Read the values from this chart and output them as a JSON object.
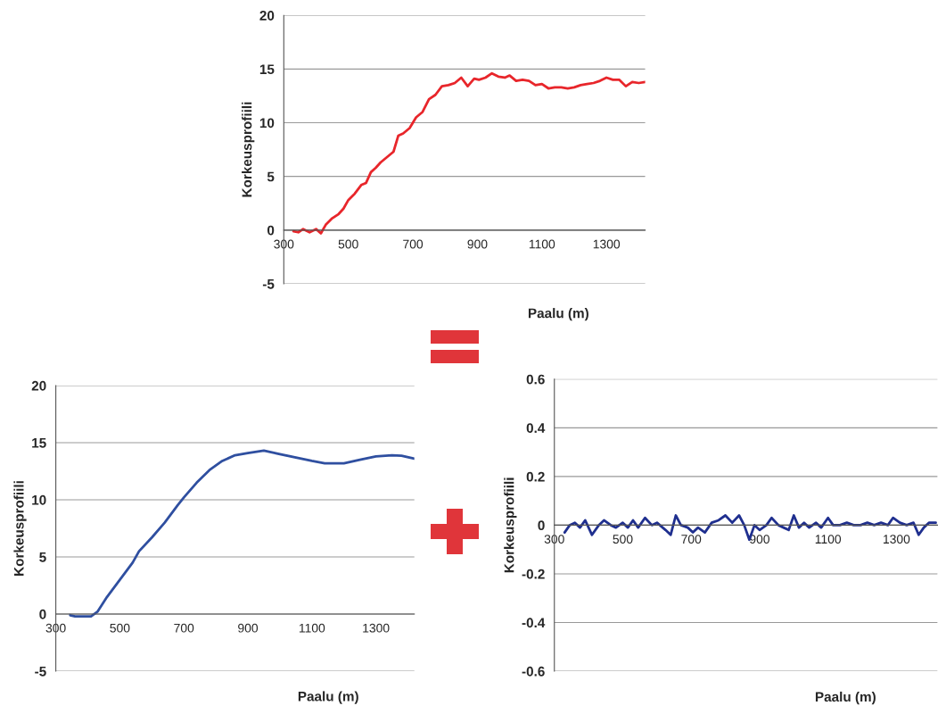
{
  "chart_data": [
    {
      "type": "line",
      "xlabel": "Paalu (m)",
      "ylabel": "Korkeusprofiili",
      "xlim": [
        300,
        1420
      ],
      "ylim": [
        -5,
        20
      ],
      "xticks": [
        300,
        500,
        700,
        900,
        1100,
        1300
      ],
      "yticks": [
        -5,
        0,
        5,
        10,
        15,
        20
      ],
      "grid": "y",
      "x": [
        330,
        345,
        360,
        380,
        400,
        415,
        430,
        450,
        470,
        485,
        500,
        520,
        540,
        555,
        570,
        585,
        600,
        620,
        640,
        655,
        670,
        690,
        710,
        730,
        750,
        770,
        790,
        810,
        830,
        850,
        870,
        890,
        905,
        925,
        945,
        965,
        985,
        1000,
        1020,
        1040,
        1060,
        1080,
        1100,
        1120,
        1140,
        1160,
        1180,
        1200,
        1220,
        1240,
        1260,
        1280,
        1300,
        1320,
        1340,
        1360,
        1380,
        1400,
        1420
      ],
      "series": [
        {
          "color": "#e8262b",
          "values": [
            -0.1,
            -0.2,
            0.1,
            -0.2,
            0.1,
            -0.3,
            0.5,
            1.1,
            1.5,
            2.0,
            2.8,
            3.4,
            4.2,
            4.4,
            5.4,
            5.8,
            6.3,
            6.8,
            7.3,
            8.8,
            9.0,
            9.5,
            10.5,
            11.0,
            12.2,
            12.6,
            13.4,
            13.5,
            13.7,
            14.2,
            13.4,
            14.1,
            14.0,
            14.2,
            14.6,
            14.3,
            14.2,
            14.4,
            13.9,
            14.0,
            13.9,
            13.5,
            13.6,
            13.2,
            13.3,
            13.3,
            13.2,
            13.3,
            13.5,
            13.6,
            13.7,
            13.9,
            14.2,
            14.0,
            14.0,
            13.4,
            13.8,
            13.7,
            13.8
          ]
        }
      ]
    },
    {
      "type": "line",
      "xlabel": "Paalu (m)",
      "ylabel": "Korkeusprofiili",
      "xlim": [
        300,
        1420
      ],
      "ylim": [
        -5,
        20
      ],
      "xticks": [
        300,
        500,
        700,
        900,
        1100,
        1300
      ],
      "yticks": [
        -5,
        0,
        5,
        10,
        15,
        20
      ],
      "grid": "y",
      "x": [
        345,
        360,
        380,
        410,
        430,
        460,
        500,
        540,
        560,
        600,
        640,
        680,
        700,
        740,
        780,
        820,
        860,
        900,
        950,
        1000,
        1050,
        1100,
        1140,
        1200,
        1250,
        1300,
        1350,
        1380,
        1420
      ],
      "series": [
        {
          "color": "#2f4fa0",
          "values": [
            -0.1,
            -0.2,
            -0.2,
            -0.2,
            0.2,
            1.5,
            3.0,
            4.5,
            5.5,
            6.7,
            8.0,
            9.5,
            10.2,
            11.5,
            12.6,
            13.4,
            13.9,
            14.1,
            14.3,
            14.0,
            13.7,
            13.4,
            13.2,
            13.2,
            13.5,
            13.8,
            13.9,
            13.85,
            13.6
          ]
        }
      ]
    },
    {
      "type": "line",
      "xlabel": "Paalu (m)",
      "ylabel": "Korkeusprofiili",
      "xlim": [
        300,
        1420
      ],
      "ylim": [
        -0.6,
        0.6
      ],
      "xticks": [
        300,
        500,
        700,
        900,
        1100,
        1300
      ],
      "yticks": [
        -0.6,
        -0.4,
        -0.2,
        0,
        0.2,
        0.4,
        0.6
      ],
      "grid": "y",
      "x": [
        330,
        345,
        360,
        375,
        390,
        410,
        430,
        445,
        465,
        480,
        500,
        515,
        530,
        545,
        565,
        585,
        600,
        625,
        640,
        655,
        670,
        690,
        705,
        720,
        740,
        760,
        780,
        800,
        820,
        840,
        855,
        870,
        885,
        900,
        920,
        935,
        955,
        970,
        985,
        1000,
        1015,
        1030,
        1045,
        1065,
        1080,
        1100,
        1115,
        1135,
        1155,
        1175,
        1195,
        1215,
        1235,
        1255,
        1275,
        1290,
        1310,
        1330,
        1350,
        1365,
        1380,
        1395,
        1415
      ],
      "series": [
        {
          "color": "#1f2f8f",
          "values": [
            -0.03,
            0.0,
            0.01,
            -0.01,
            0.02,
            -0.04,
            0.0,
            0.02,
            0.0,
            -0.01,
            0.01,
            -0.01,
            0.02,
            -0.01,
            0.03,
            0.0,
            0.01,
            -0.02,
            -0.04,
            0.04,
            0.0,
            -0.01,
            -0.03,
            -0.01,
            -0.03,
            0.01,
            0.02,
            0.04,
            0.01,
            0.04,
            0.0,
            -0.06,
            0.0,
            -0.02,
            0.0,
            0.03,
            0.0,
            -0.01,
            -0.02,
            0.04,
            -0.01,
            0.01,
            -0.01,
            0.01,
            -0.01,
            0.03,
            0.0,
            0.0,
            0.01,
            0.0,
            0.0,
            0.01,
            0.0,
            0.01,
            0.0,
            0.03,
            0.01,
            0.0,
            0.01,
            -0.04,
            -0.01,
            0.01,
            0.01
          ]
        }
      ]
    }
  ]
}
